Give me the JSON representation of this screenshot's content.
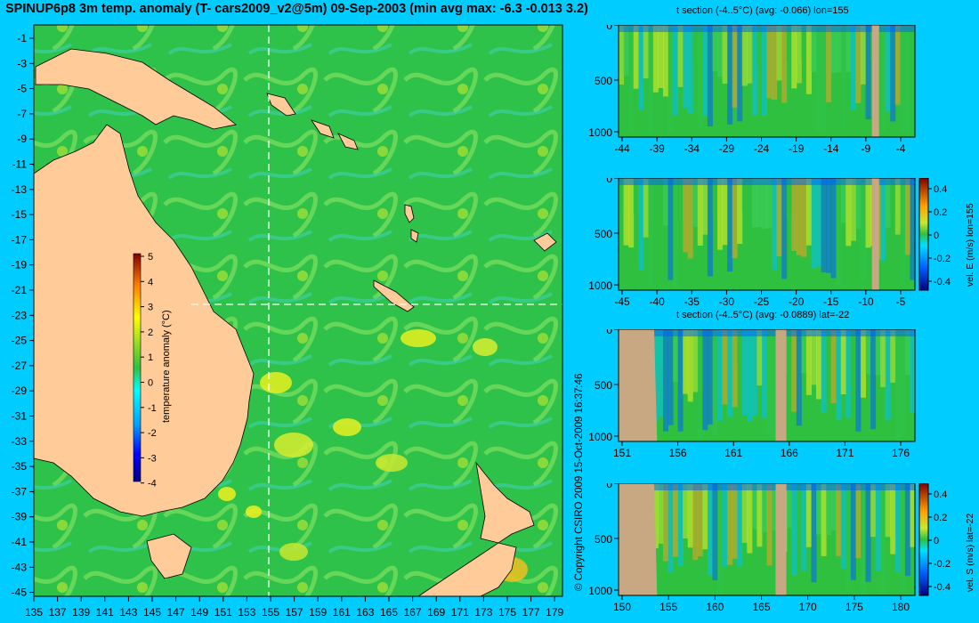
{
  "title": "SPINUP6p8 3m temp. anomaly (T- cars2009_v2@5m) 09-Sep-2003 (min avg max: -6.3 -0.013 3.2)",
  "copyright": "© Copyright CSIRO 2009   15-Oct-2009 16:37:46",
  "colors": {
    "background": "#00ccff",
    "land": "#ffcc99",
    "section_land": "#c8a882",
    "ocean_base": "#22c040"
  },
  "map": {
    "lat_ticks": [
      "-1",
      "-3",
      "-5",
      "-7",
      "-9",
      "-11",
      "-13",
      "-15",
      "-17",
      "-19",
      "-21",
      "-23",
      "-25",
      "-27",
      "-29",
      "-31",
      "-33",
      "-35",
      "-37",
      "-39",
      "-41",
      "-43",
      "-45"
    ],
    "lon_ticks": [
      "135",
      "137",
      "139",
      "141",
      "143",
      "145",
      "147",
      "149",
      "151",
      "153",
      "155",
      "157",
      "159",
      "161",
      "163",
      "165",
      "167",
      "169",
      "171",
      "173",
      "175",
      "177",
      "179"
    ],
    "colorbar": {
      "label": "temperature anomaly (°C)",
      "ticks": [
        "5",
        "4",
        "3",
        "2",
        "1",
        "0",
        "-1",
        "-2",
        "-3",
        "-4"
      ]
    },
    "section_lines": {
      "lon": "155",
      "lat": "-22"
    }
  },
  "panels": [
    {
      "title": "t section (-4..5°C) (avg: -0.066) lon=155",
      "y_ticks": [
        "0",
        "500",
        "1000"
      ],
      "x_ticks": [
        "-44",
        "-39",
        "-34",
        "-29",
        "-24",
        "-19",
        "-14",
        "-9",
        "-4"
      ]
    },
    {
      "title": "",
      "y_ticks": [
        "0",
        "500",
        "1000"
      ],
      "x_ticks": [
        "-45",
        "-40",
        "-35",
        "-30",
        "-25",
        "-20",
        "-15",
        "-10",
        "-5"
      ],
      "colorbar_label": "vel. E (m/s) lon=155",
      "colorbar_ticks": [
        "0.4",
        "0.2",
        "0",
        "-0.2",
        "-0.4"
      ]
    },
    {
      "title": "t section (-4..5°C) (avg: -0.0889) lat=-22",
      "y_ticks": [
        "0",
        "500",
        "1000"
      ],
      "x_ticks": [
        "151",
        "156",
        "161",
        "166",
        "171",
        "176"
      ]
    },
    {
      "title": "",
      "y_ticks": [
        "0",
        "500",
        "1000"
      ],
      "x_ticks": [
        "150",
        "155",
        "160",
        "165",
        "170",
        "175",
        "180"
      ],
      "colorbar_label": "vel. S (m/s) lat=-22",
      "colorbar_ticks": [
        "0.4",
        "0.2",
        "0",
        "-0.2",
        "-0.4"
      ]
    }
  ]
}
